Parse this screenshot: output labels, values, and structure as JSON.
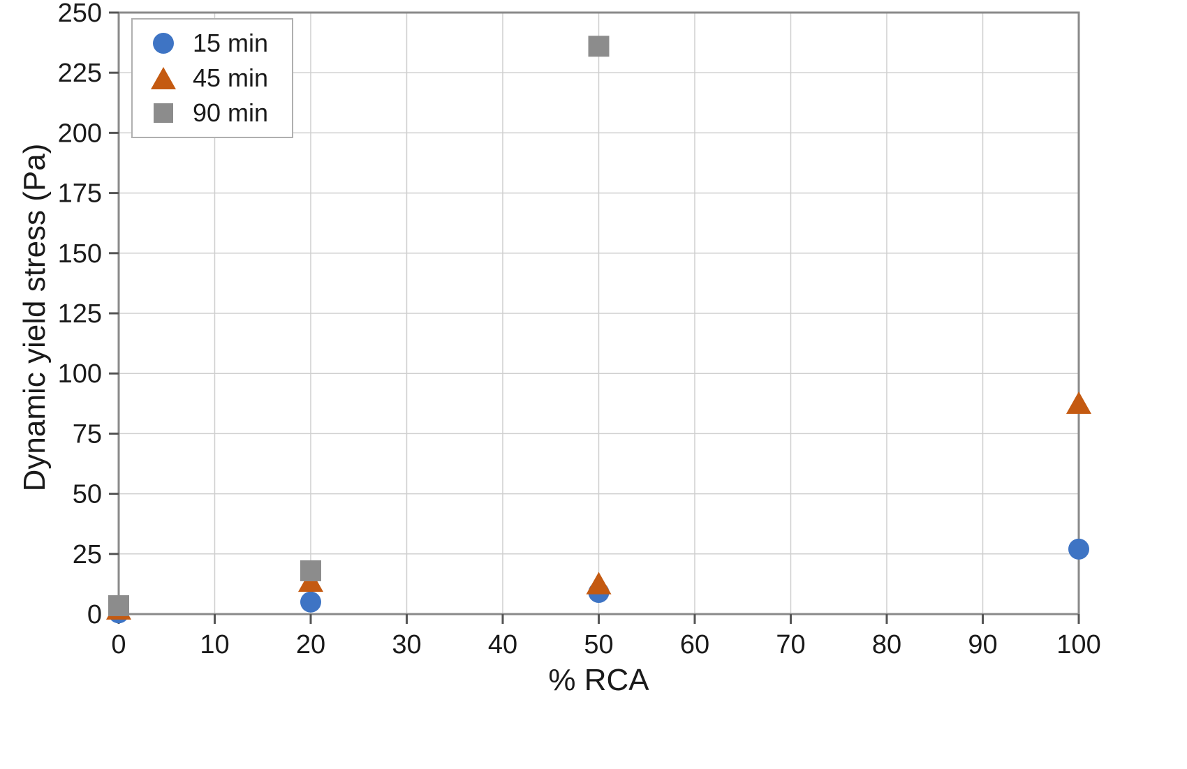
{
  "chart_data": {
    "type": "scatter",
    "title": "",
    "xlabel": "% RCA",
    "ylabel": "Dynamic yield stress (Pa)",
    "xlim": [
      0,
      100
    ],
    "ylim": [
      0,
      250
    ],
    "xticks": [
      0,
      10,
      20,
      30,
      40,
      50,
      60,
      70,
      80,
      90,
      100
    ],
    "yticks": [
      0,
      25,
      50,
      75,
      100,
      125,
      150,
      175,
      200,
      225,
      250
    ],
    "grid": true,
    "legend_position": "top-left",
    "series": [
      {
        "name": "15 min",
        "marker": "circle",
        "color": "#3E74C4",
        "points": [
          [
            0,
            0.5
          ],
          [
            20,
            5
          ],
          [
            50,
            9
          ],
          [
            100,
            27
          ]
        ]
      },
      {
        "name": "45 min",
        "marker": "triangle",
        "color": "#C45A11",
        "points": [
          [
            0,
            1.5
          ],
          [
            20,
            13
          ],
          [
            50,
            12
          ],
          [
            100,
            87
          ]
        ]
      },
      {
        "name": "90 min",
        "marker": "square",
        "color": "#8C8C8C",
        "points": [
          [
            0,
            3.5
          ],
          [
            20,
            18
          ],
          [
            50,
            236
          ]
        ]
      }
    ]
  },
  "styles": {
    "grid_color": "#cfcfcf",
    "axis_color": "#8a8a8a",
    "tick_color": "#555555",
    "tick_label_color": "#1a1a1a"
  }
}
